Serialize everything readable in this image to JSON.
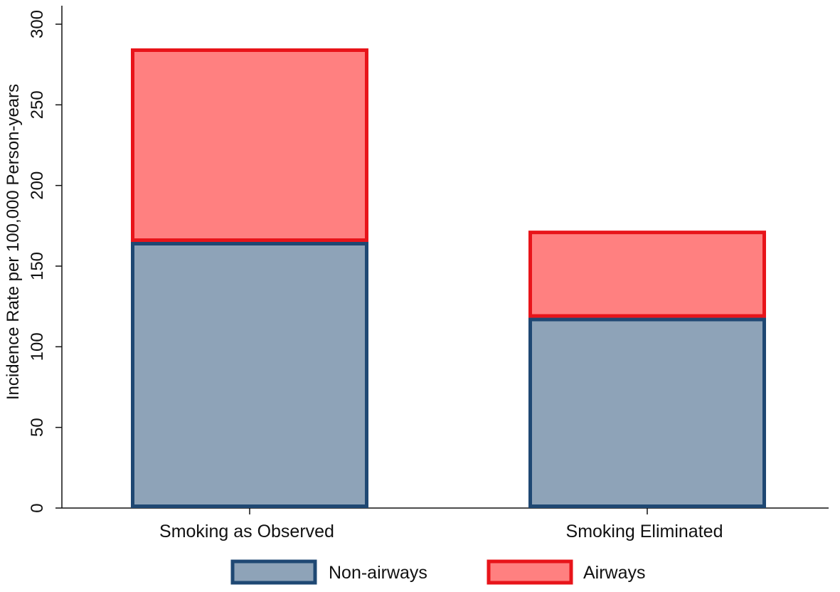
{
  "chart_data": {
    "type": "bar",
    "stacked": true,
    "categories": [
      "Smoking as Observed",
      "Smoking Eliminated"
    ],
    "series": [
      {
        "name": "Non-airways",
        "values": [
          165,
          118
        ],
        "fill": "#8ea3b8",
        "stroke": "#1f4873"
      },
      {
        "name": "Airways",
        "values": [
          120,
          54
        ],
        "fill": "#ff8080",
        "stroke": "#e8141a"
      }
    ],
    "title": "",
    "xlabel": "",
    "ylabel": "Incidence Rate per 100,000 Person-years",
    "ylim": [
      0,
      300
    ],
    "yticks": [
      0,
      50,
      100,
      150,
      200,
      250,
      300
    ],
    "grid": false,
    "legend": "bottom"
  }
}
